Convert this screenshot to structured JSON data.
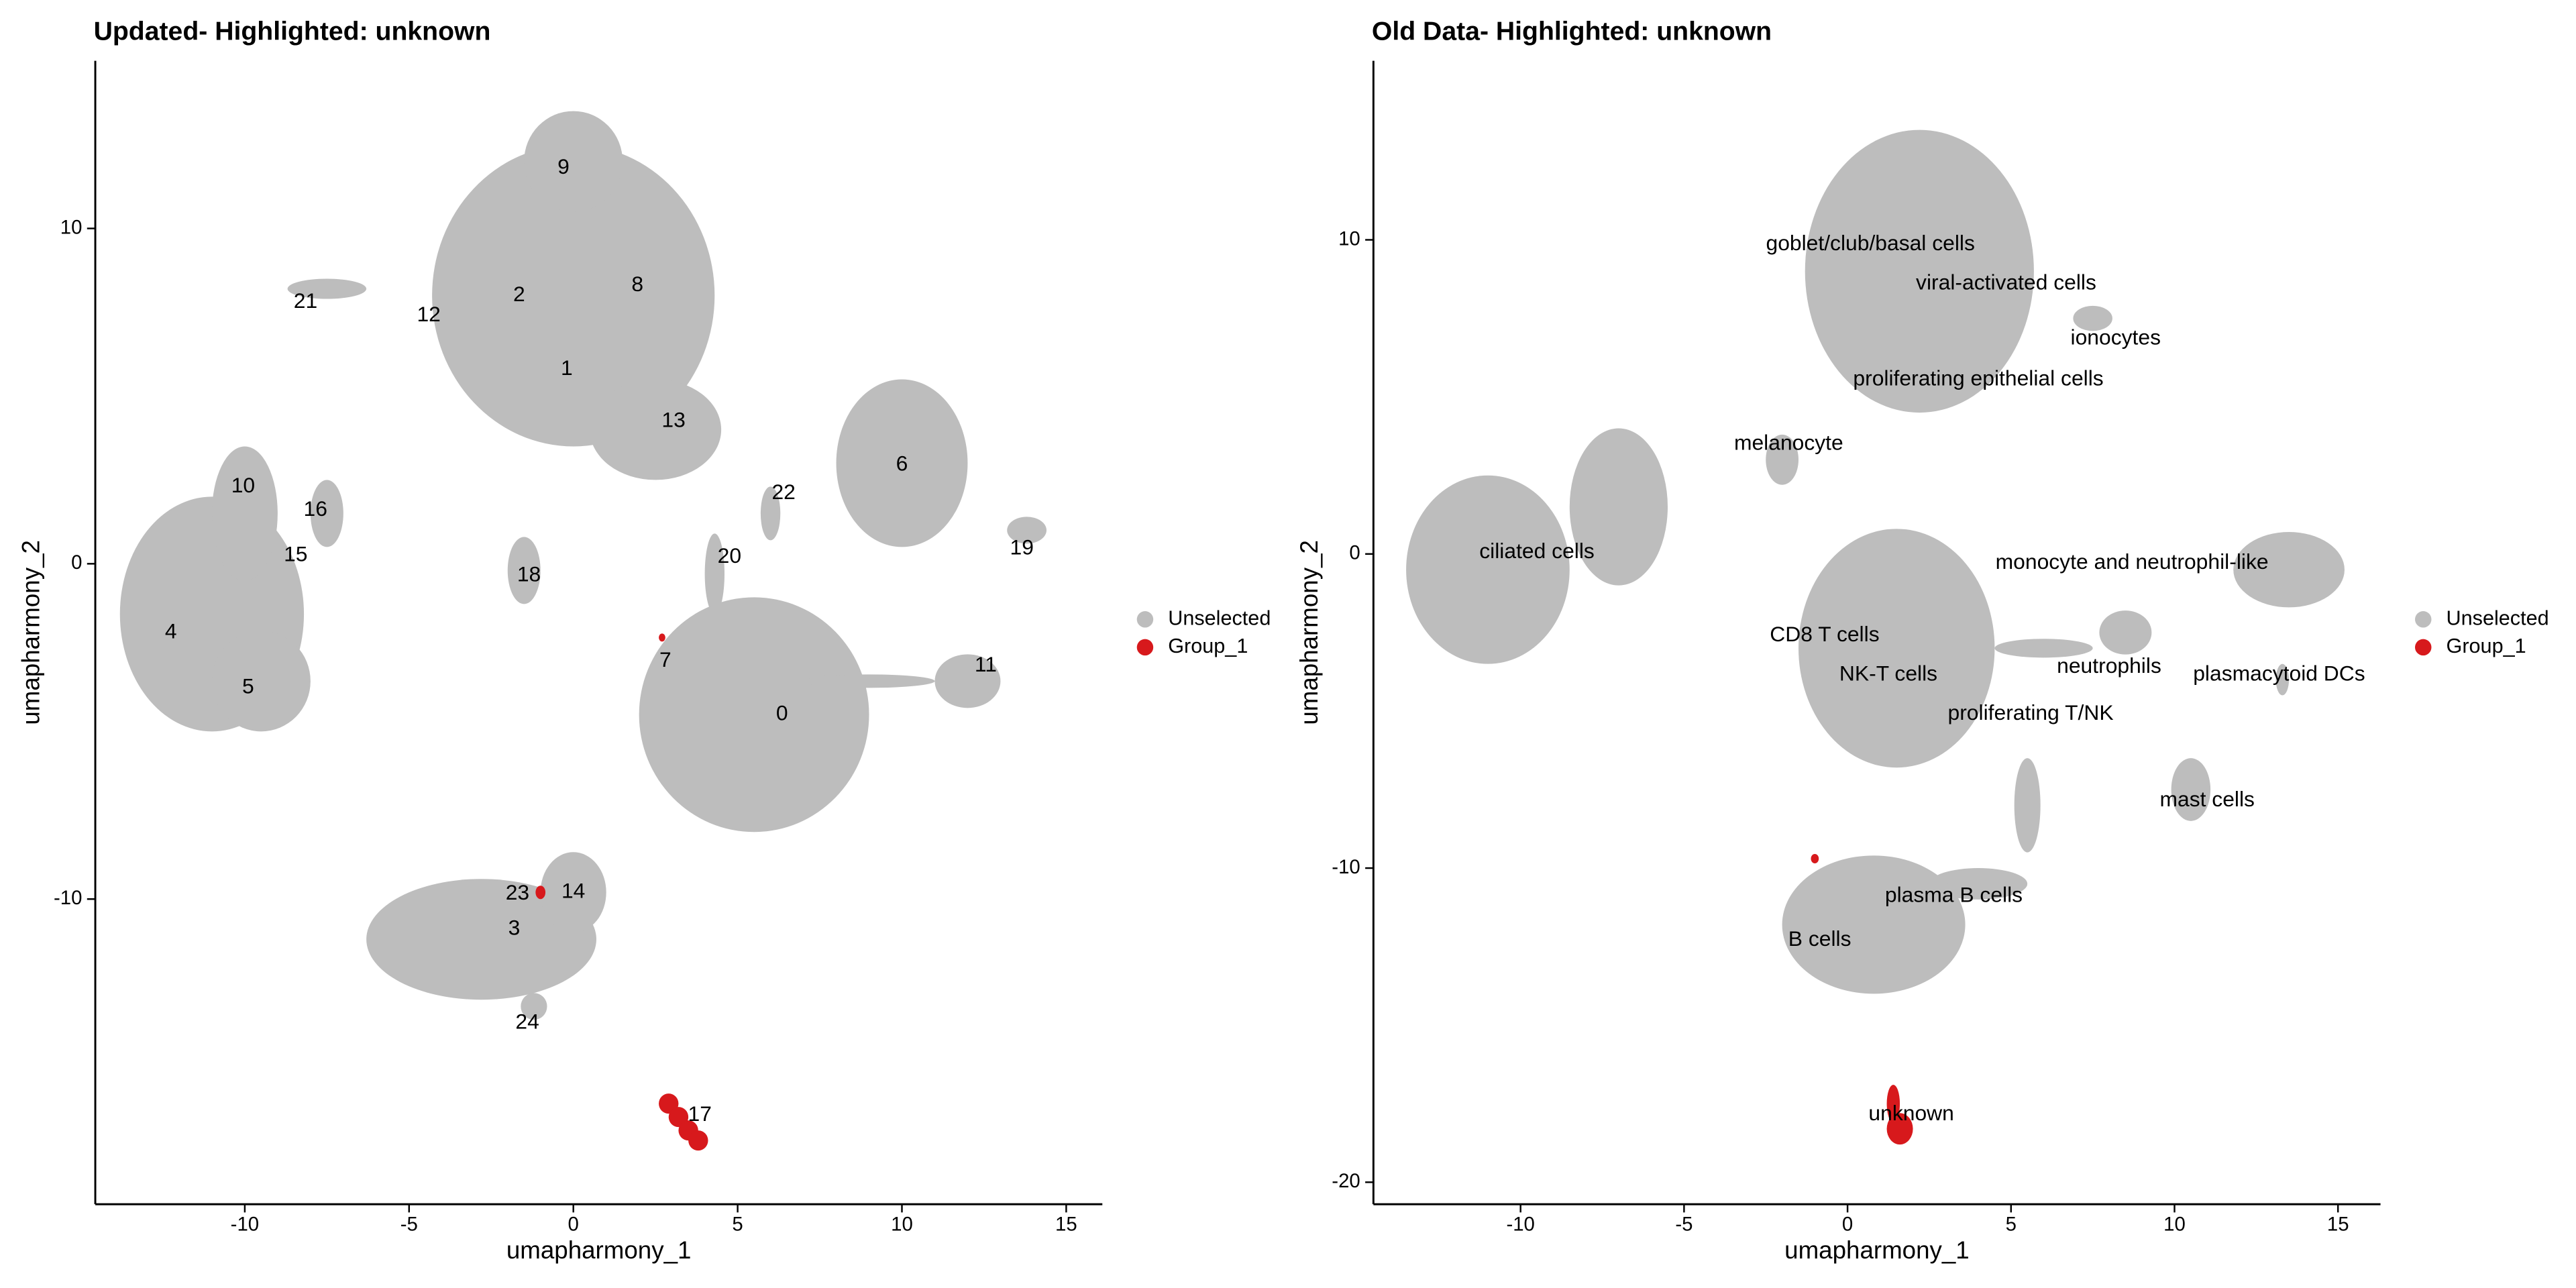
{
  "chart_data": [
    {
      "type": "scatter",
      "title": "Updated- Highlighted: unknown",
      "x_label": "umapharmony_1",
      "y_label": "umapharmony_2",
      "xlim": [
        -14.55,
        16.1
      ],
      "ylim": [
        -19.1,
        15.0
      ],
      "xticks": [
        -10,
        -5,
        0,
        5,
        10,
        15
      ],
      "yticks": [
        -10,
        0,
        10
      ],
      "series": [
        {
          "name": "Unselected",
          "color": "#bdbdbd",
          "x": [
            0,
            0,
            2.5,
            -7.5,
            -11,
            -10,
            -7.5,
            -9.5,
            -1.5,
            4.3,
            6,
            10,
            13.8,
            5.5,
            12,
            9,
            -2.8,
            0,
            -1.2
          ],
          "values": [
            8,
            12,
            4,
            8.2,
            -1.5,
            1.5,
            1.5,
            -3.5,
            -0.2,
            -0.3,
            1.5,
            3,
            1,
            -4.5,
            -3.5,
            -3.5,
            -11.2,
            -9.8,
            -13.2
          ],
          "rx": [
            4.3,
            1.5,
            2,
            1.2,
            2.8,
            1,
            0.5,
            1.5,
            0.5,
            0.3,
            0.3,
            2,
            0.6,
            3.5,
            1,
            2,
            3.5,
            1,
            0.4
          ],
          "ry": [
            4.5,
            1.5,
            1.5,
            0.3,
            3.5,
            2,
            1,
            1.5,
            1,
            1.2,
            0.8,
            2.5,
            0.4,
            3.5,
            0.8,
            0.2,
            1.8,
            1.2,
            0.4
          ]
        },
        {
          "name": "Group_1",
          "color": "#d7191c",
          "x": [
            2.9,
            3.2,
            3.5,
            3.8,
            2.7,
            -1
          ],
          "values": [
            -16.1,
            -16.5,
            -16.9,
            -17.2,
            -2.2,
            -9.8
          ],
          "rx": [
            0.3,
            0.3,
            0.3,
            0.3,
            0.1,
            0.15
          ],
          "ry": [
            0.3,
            0.3,
            0.3,
            0.3,
            0.12,
            0.2
          ]
        }
      ],
      "annotations": [
        {
          "text": "9",
          "x": -0.3,
          "y": 11.8
        },
        {
          "text": "2",
          "x": -1.65,
          "y": 8.0
        },
        {
          "text": "8",
          "x": 1.95,
          "y": 8.3
        },
        {
          "text": "1",
          "x": -0.2,
          "y": 5.8
        },
        {
          "text": "13",
          "x": 3.05,
          "y": 4.25
        },
        {
          "text": "12",
          "x": -4.4,
          "y": 7.4
        },
        {
          "text": "21",
          "x": -8.15,
          "y": 7.8
        },
        {
          "text": "10",
          "x": -10.05,
          "y": 2.3
        },
        {
          "text": "16",
          "x": -7.85,
          "y": 1.6
        },
        {
          "text": "15",
          "x": -8.45,
          "y": 0.25
        },
        {
          "text": "4",
          "x": -12.25,
          "y": -2.05
        },
        {
          "text": "5",
          "x": -9.9,
          "y": -3.7
        },
        {
          "text": "18",
          "x": -1.35,
          "y": -0.35
        },
        {
          "text": "22",
          "x": 6.4,
          "y": 2.1
        },
        {
          "text": "20",
          "x": 4.75,
          "y": 0.2
        },
        {
          "text": "6",
          "x": 10,
          "y": 2.95
        },
        {
          "text": "19",
          "x": 13.65,
          "y": 0.45
        },
        {
          "text": "7",
          "x": 2.8,
          "y": -2.9
        },
        {
          "text": "0",
          "x": 6.35,
          "y": -4.5
        },
        {
          "text": "11",
          "x": 12.55,
          "y": -3.05
        },
        {
          "text": "23",
          "x": -1.7,
          "y": -9.85
        },
        {
          "text": "14",
          "x": 0,
          "y": -9.8
        },
        {
          "text": "3",
          "x": -1.8,
          "y": -10.9
        },
        {
          "text": "24",
          "x": -1.4,
          "y": -13.7
        },
        {
          "text": "17",
          "x": 3.85,
          "y": -16.45
        }
      ]
    },
    {
      "type": "scatter",
      "title": "Old Data- Highlighted: unknown",
      "x_label": "umapharmony_1",
      "y_label": "umapharmony_2",
      "xlim": [
        -14.5,
        16.3
      ],
      "ylim": [
        -20.7,
        15.7
      ],
      "xticks": [
        -10,
        -5,
        0,
        5,
        10,
        15
      ],
      "yticks": [
        -20,
        -10,
        0,
        10
      ],
      "series": [
        {
          "name": "Unselected",
          "color": "#bdbdbd",
          "x": [
            2.2,
            7.5,
            -2,
            -11,
            -7,
            1.5,
            8.5,
            13.5,
            13.3,
            10.5,
            4,
            5.5,
            0.8,
            6
          ],
          "values": [
            9,
            7.5,
            3,
            -0.5,
            1.5,
            -3,
            -2.5,
            -0.5,
            -4,
            -7.5,
            -10.5,
            -8,
            -11.8,
            -3
          ],
          "rx": [
            3.5,
            0.6,
            0.5,
            2.5,
            1.5,
            3,
            0.8,
            1.7,
            0.2,
            0.6,
            1.5,
            0.4,
            2.8,
            1.5
          ],
          "ry": [
            4.5,
            0.4,
            0.8,
            3,
            2.5,
            3.8,
            0.7,
            1.2,
            0.5,
            1,
            0.5,
            1.5,
            2.2,
            0.3
          ]
        },
        {
          "name": "Group_1",
          "color": "#d7191c",
          "x": [
            1.4,
            1.6,
            -1
          ],
          "values": [
            -17.5,
            -18.3,
            -9.7
          ],
          "rx": [
            0.2,
            0.4,
            0.12
          ],
          "ry": [
            0.6,
            0.5,
            0.15
          ]
        }
      ],
      "annotations": [
        {
          "text": "goblet/club/basal cells",
          "x": 0.7,
          "y": 9.85
        },
        {
          "text": "viral-activated cells",
          "x": 4.85,
          "y": 8.6
        },
        {
          "text": "ionocytes",
          "x": 8.2,
          "y": 6.85
        },
        {
          "text": "proliferating epithelial cells",
          "x": 4.0,
          "y": 5.55
        },
        {
          "text": "melanocyte",
          "x": -1.8,
          "y": 3.5
        },
        {
          "text": "ciliated cells",
          "x": -9.5,
          "y": 0.05
        },
        {
          "text": "monocyte and neutrophil-like",
          "x": 8.7,
          "y": -0.3
        },
        {
          "text": "CD8 T cells",
          "x": -0.7,
          "y": -2.6
        },
        {
          "text": "NK-T cells",
          "x": 1.25,
          "y": -3.85
        },
        {
          "text": "neutrophils",
          "x": 8.0,
          "y": -3.6
        },
        {
          "text": "plasmacytoid DCs",
          "x": 13.2,
          "y": -3.85
        },
        {
          "text": "proliferating T/NK",
          "x": 5.6,
          "y": -5.1
        },
        {
          "text": "mast cells",
          "x": 11.0,
          "y": -7.85
        },
        {
          "text": "plasma B cells",
          "x": 3.25,
          "y": -10.9
        },
        {
          "text": "B cells",
          "x": -0.85,
          "y": -12.3
        },
        {
          "text": "unknown",
          "x": 1.95,
          "y": -17.85
        }
      ]
    }
  ]
}
